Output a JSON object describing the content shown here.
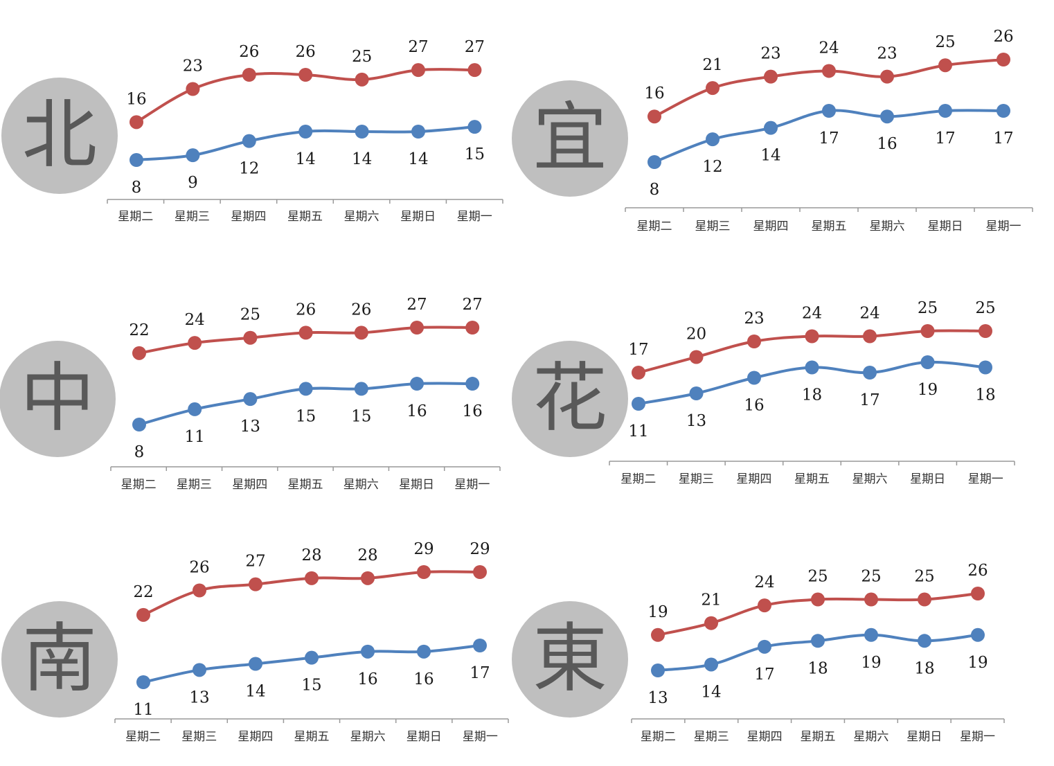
{
  "colors": {
    "high": "#c0504d",
    "low": "#4f81bd",
    "axis": "#999999",
    "badge": "#bfbfbf",
    "badge_text": "#595959"
  },
  "chart_data": [
    {
      "type": "line",
      "region": "北",
      "categories": [
        "星期二",
        "星期三",
        "星期四",
        "星期五",
        "星期六",
        "星期日",
        "星期一"
      ],
      "series": [
        {
          "values": [
            16,
            23,
            26,
            26,
            25,
            27,
            27
          ]
        },
        {
          "values": [
            8,
            9,
            12,
            14,
            14,
            14,
            15
          ]
        }
      ]
    },
    {
      "type": "line",
      "region": "宜",
      "categories": [
        "星期二",
        "星期三",
        "星期四",
        "星期五",
        "星期六",
        "星期日",
        "星期一"
      ],
      "series": [
        {
          "values": [
            16,
            21,
            23,
            24,
            23,
            25,
            26
          ]
        },
        {
          "values": [
            8,
            12,
            14,
            17,
            16,
            17,
            17
          ]
        }
      ]
    },
    {
      "type": "line",
      "region": "中",
      "categories": [
        "星期二",
        "星期三",
        "星期四",
        "星期五",
        "星期六",
        "星期日",
        "星期一"
      ],
      "series": [
        {
          "values": [
            22,
            24,
            25,
            26,
            26,
            27,
            27
          ]
        },
        {
          "values": [
            8,
            11,
            13,
            15,
            15,
            16,
            16
          ]
        }
      ]
    },
    {
      "type": "line",
      "region": "花",
      "categories": [
        "星期二",
        "星期三",
        "星期四",
        "星期五",
        "星期六",
        "星期日",
        "星期一"
      ],
      "series": [
        {
          "values": [
            17,
            20,
            23,
            24,
            24,
            25,
            25
          ]
        },
        {
          "values": [
            11,
            13,
            16,
            18,
            17,
            19,
            18
          ]
        }
      ]
    },
    {
      "type": "line",
      "region": "南",
      "categories": [
        "星期二",
        "星期三",
        "星期四",
        "星期五",
        "星期六",
        "星期日",
        "星期一"
      ],
      "series": [
        {
          "values": [
            22,
            26,
            27,
            28,
            28,
            29,
            29
          ]
        },
        {
          "values": [
            11,
            13,
            14,
            15,
            16,
            16,
            17
          ]
        }
      ]
    },
    {
      "type": "line",
      "region": "東",
      "categories": [
        "星期二",
        "星期三",
        "星期四",
        "星期五",
        "星期六",
        "星期日",
        "星期一"
      ],
      "series": [
        {
          "values": [
            19,
            21,
            24,
            25,
            25,
            25,
            26
          ]
        },
        {
          "values": [
            13,
            14,
            17,
            18,
            19,
            18,
            19
          ]
        }
      ]
    }
  ]
}
